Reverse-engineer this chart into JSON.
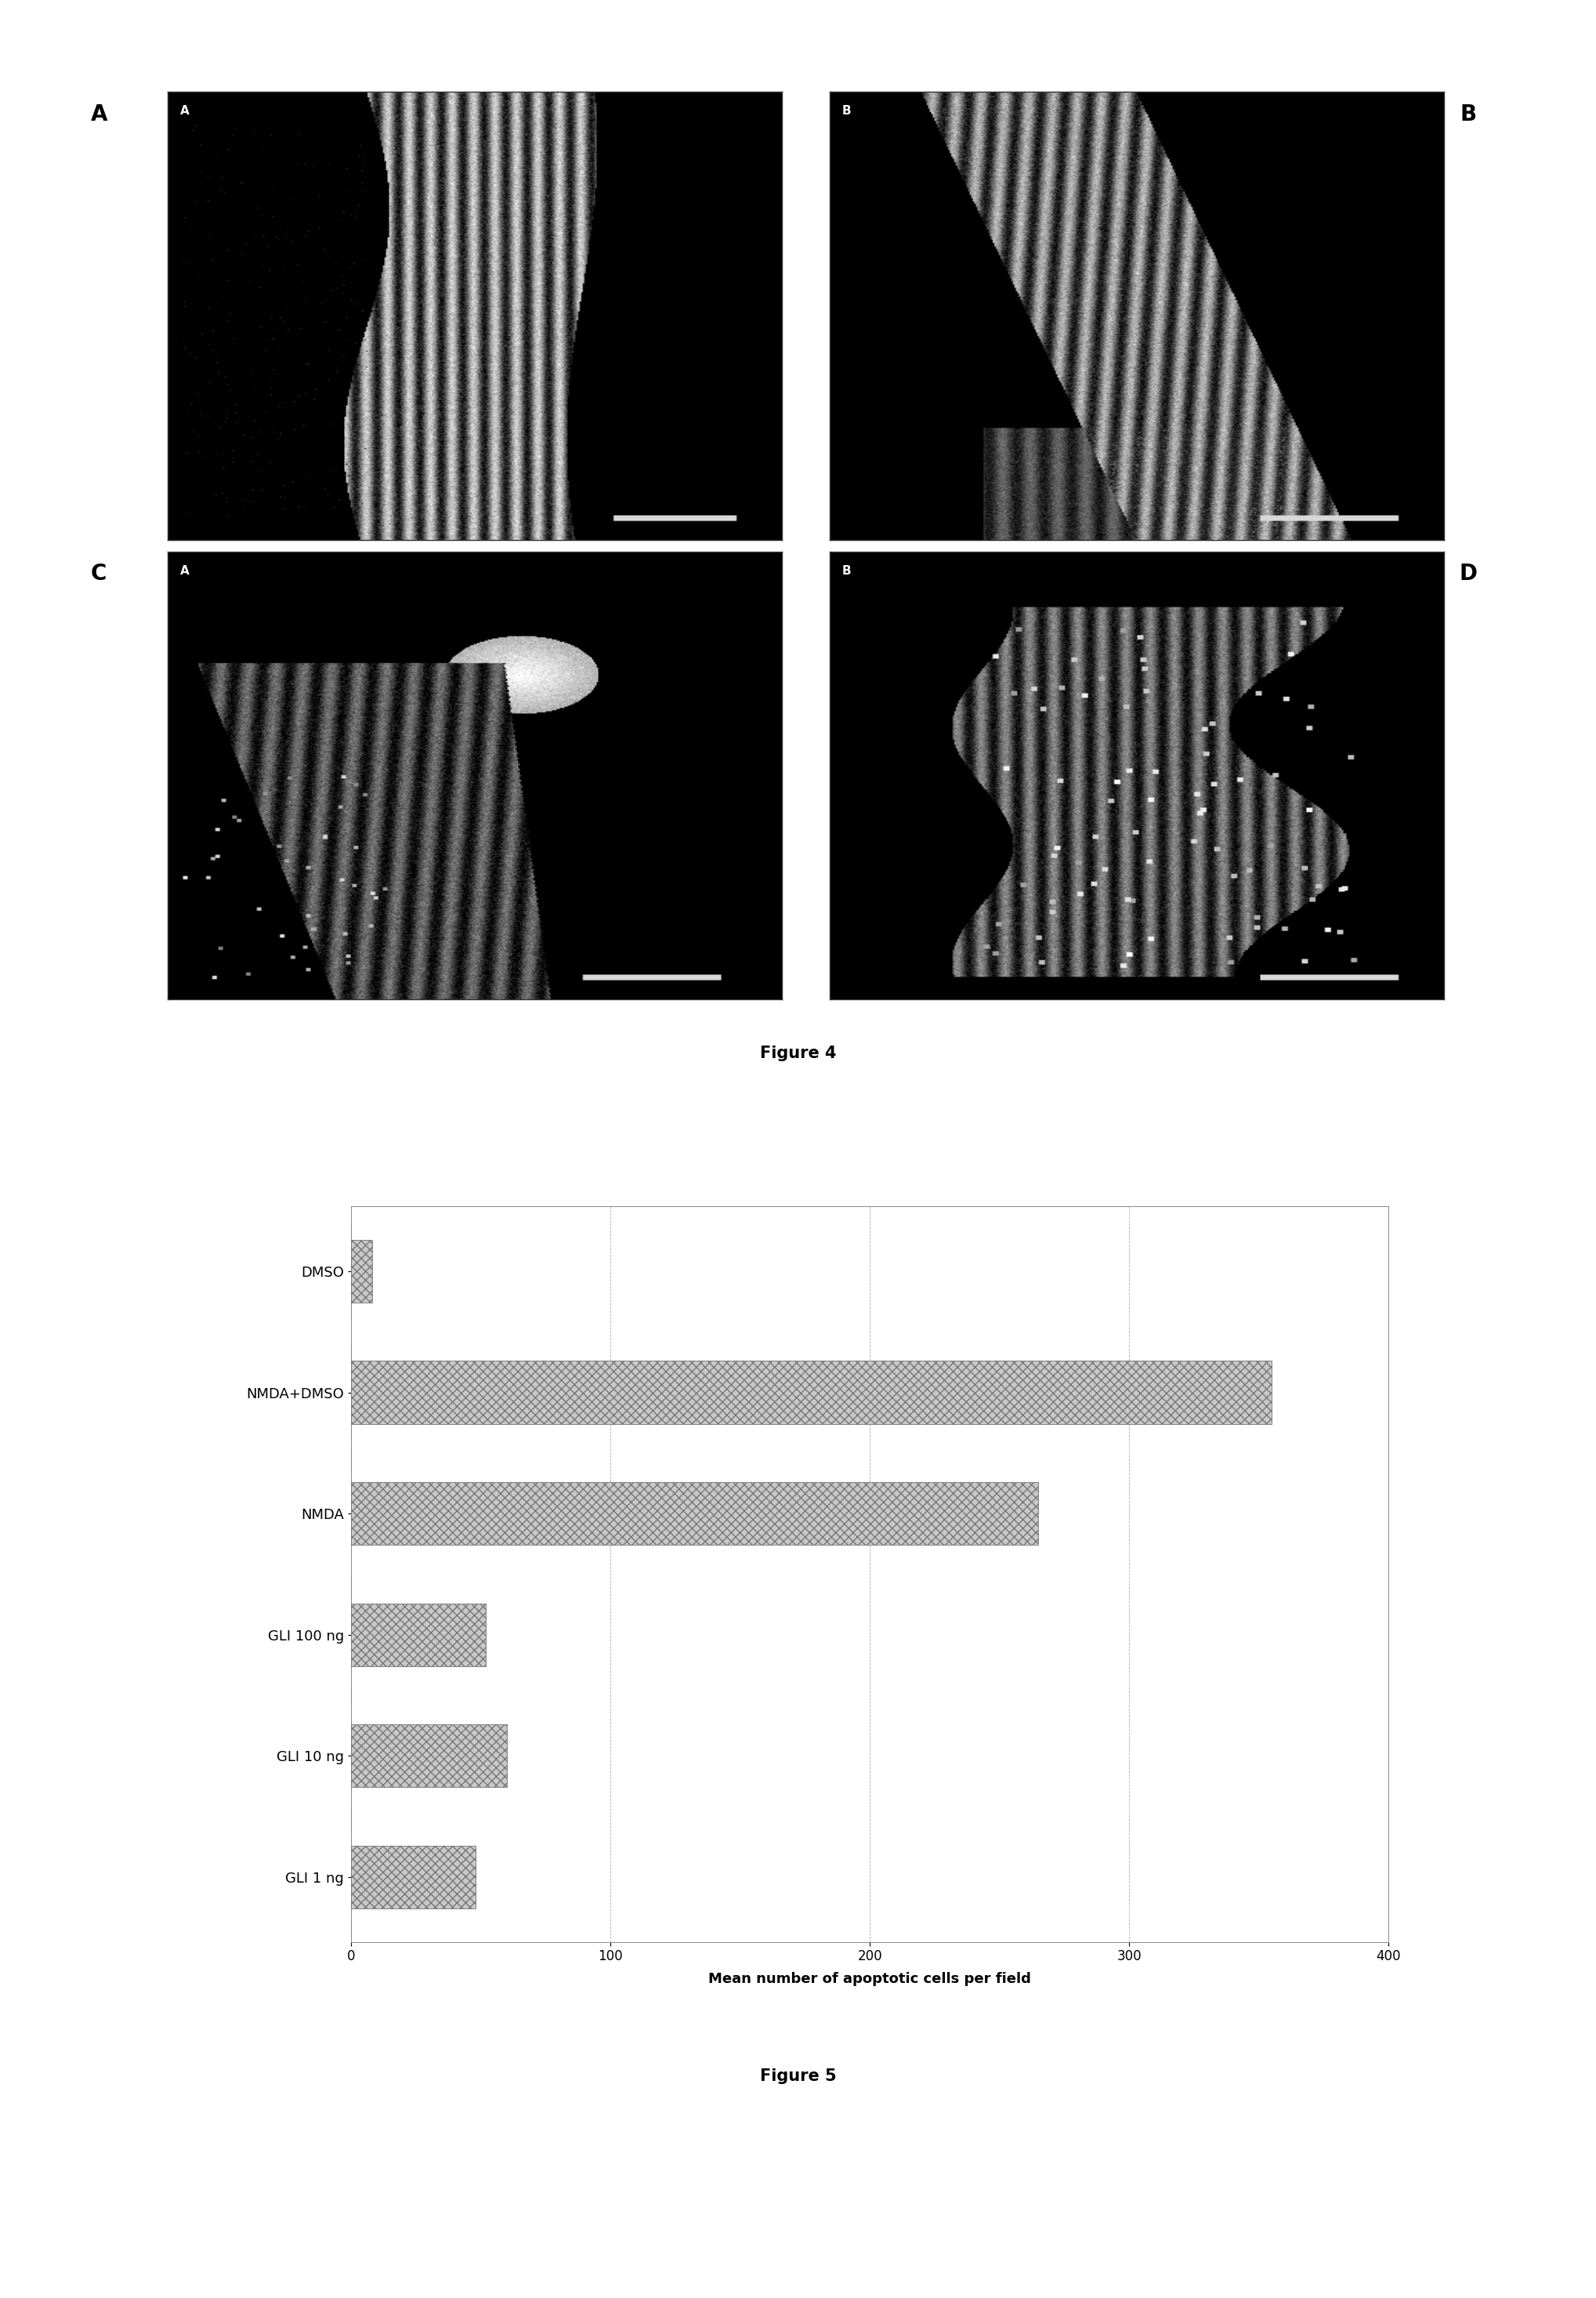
{
  "fig4_caption": "Figure 4",
  "fig5_caption": "Figure 5",
  "bar_labels": [
    "DMSO",
    "NMDA+DMSO",
    "NMDA",
    "GLI 100 ng",
    "GLI 10 ng",
    "GLI 1 ng"
  ],
  "bar_values": [
    8,
    355,
    265,
    52,
    60,
    48
  ],
  "bar_color": "#c8c8c8",
  "xlabel": "Mean number of apoptotic cells per field",
  "xlim": [
    0,
    400
  ],
  "xticks": [
    0,
    100,
    200,
    300,
    400
  ],
  "grid_color": "#999999",
  "background_color": "#ffffff",
  "bar_label_fontsize": 13,
  "xlabel_fontsize": 13,
  "caption_fontsize": 15,
  "caption_fontweight": "bold",
  "panel_label_fontsize": 20,
  "panel_label_fontweight": "bold",
  "inside_label_fontsize": 11,
  "panel_labels_outside": [
    "A",
    "B",
    "C",
    "D"
  ],
  "panel_labels_inside": [
    "A",
    "B",
    "A",
    "B"
  ]
}
